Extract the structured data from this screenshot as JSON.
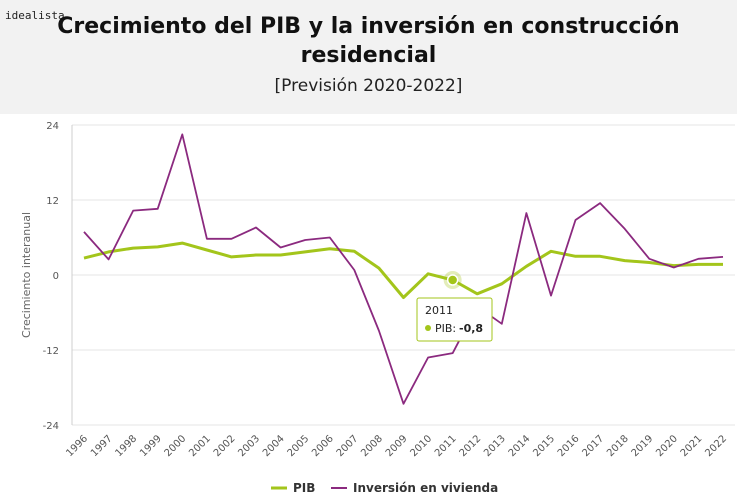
{
  "brand": {
    "logo_text": "idealista"
  },
  "colors": {
    "pib": "#a3c51b",
    "vivienda": "#8b2a7f",
    "header_bg": "#f2f2f2"
  },
  "chart_data": {
    "type": "line",
    "title": "Crecimiento del PIB y la inversión en construcción residencial",
    "subtitle": "[Previsión 2020-2022]",
    "ylabel": "Crecimiento interanual",
    "xlabel": "",
    "ylim": [
      -24,
      24
    ],
    "yticks": [
      "24",
      "12",
      "0",
      "-12",
      "-24"
    ],
    "x": [
      "1996",
      "1997",
      "1998",
      "1999",
      "2000",
      "2001",
      "2002",
      "2003",
      "2004",
      "2005",
      "2006",
      "2007",
      "2008",
      "2009",
      "2010",
      "2011",
      "2012",
      "2013",
      "2014",
      "2015",
      "2016",
      "2017",
      "2018",
      "2019",
      "2020",
      "2021",
      "2022"
    ],
    "series": [
      {
        "name": "PIB",
        "values": [
          2.7,
          3.7,
          4.3,
          4.5,
          5.1,
          4.0,
          2.9,
          3.2,
          3.2,
          3.7,
          4.2,
          3.8,
          1.1,
          -3.6,
          0.2,
          -0.8,
          -3.0,
          -1.4,
          1.4,
          3.8,
          3.0,
          3.0,
          2.3,
          2.0,
          1.5,
          1.7,
          1.7
        ]
      },
      {
        "name": "Inversión en vivienda",
        "values": [
          6.9,
          2.5,
          10.3,
          10.6,
          22.5,
          5.8,
          5.8,
          7.6,
          4.4,
          5.6,
          6.0,
          0.8,
          -8.9,
          -20.6,
          -13.2,
          -12.5,
          -5.0,
          -7.8,
          9.9,
          -3.3,
          8.8,
          11.5,
          7.4,
          2.6,
          1.2,
          2.6,
          2.9
        ]
      }
    ],
    "grid": true,
    "legend": "bottom",
    "tooltip": {
      "x": "2011",
      "series": "PIB",
      "label": "PIB:",
      "value": "-0,8"
    }
  }
}
